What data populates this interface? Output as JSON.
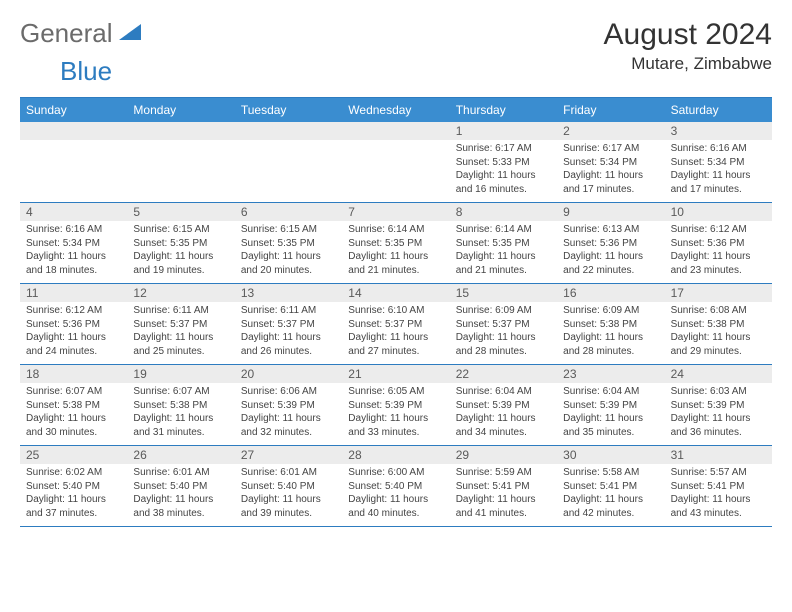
{
  "logo": {
    "general": "General",
    "blue": "Blue"
  },
  "title": "August 2024",
  "location": "Mutare, Zimbabwe",
  "colors": {
    "header_bg": "#3a8dd0",
    "header_text": "#ffffff",
    "rule": "#2d7cc0",
    "daynum_bg": "#ececec",
    "body_text": "#444444",
    "logo_gray": "#6b6b6b",
    "logo_blue": "#2d7cc0"
  },
  "weekdays": [
    "Sunday",
    "Monday",
    "Tuesday",
    "Wednesday",
    "Thursday",
    "Friday",
    "Saturday"
  ],
  "weeks": [
    [
      {
        "n": "",
        "sr": "",
        "ss": "",
        "dl": ""
      },
      {
        "n": "",
        "sr": "",
        "ss": "",
        "dl": ""
      },
      {
        "n": "",
        "sr": "",
        "ss": "",
        "dl": ""
      },
      {
        "n": "",
        "sr": "",
        "ss": "",
        "dl": ""
      },
      {
        "n": "1",
        "sr": "Sunrise: 6:17 AM",
        "ss": "Sunset: 5:33 PM",
        "dl": "Daylight: 11 hours and 16 minutes."
      },
      {
        "n": "2",
        "sr": "Sunrise: 6:17 AM",
        "ss": "Sunset: 5:34 PM",
        "dl": "Daylight: 11 hours and 17 minutes."
      },
      {
        "n": "3",
        "sr": "Sunrise: 6:16 AM",
        "ss": "Sunset: 5:34 PM",
        "dl": "Daylight: 11 hours and 17 minutes."
      }
    ],
    [
      {
        "n": "4",
        "sr": "Sunrise: 6:16 AM",
        "ss": "Sunset: 5:34 PM",
        "dl": "Daylight: 11 hours and 18 minutes."
      },
      {
        "n": "5",
        "sr": "Sunrise: 6:15 AM",
        "ss": "Sunset: 5:35 PM",
        "dl": "Daylight: 11 hours and 19 minutes."
      },
      {
        "n": "6",
        "sr": "Sunrise: 6:15 AM",
        "ss": "Sunset: 5:35 PM",
        "dl": "Daylight: 11 hours and 20 minutes."
      },
      {
        "n": "7",
        "sr": "Sunrise: 6:14 AM",
        "ss": "Sunset: 5:35 PM",
        "dl": "Daylight: 11 hours and 21 minutes."
      },
      {
        "n": "8",
        "sr": "Sunrise: 6:14 AM",
        "ss": "Sunset: 5:35 PM",
        "dl": "Daylight: 11 hours and 21 minutes."
      },
      {
        "n": "9",
        "sr": "Sunrise: 6:13 AM",
        "ss": "Sunset: 5:36 PM",
        "dl": "Daylight: 11 hours and 22 minutes."
      },
      {
        "n": "10",
        "sr": "Sunrise: 6:12 AM",
        "ss": "Sunset: 5:36 PM",
        "dl": "Daylight: 11 hours and 23 minutes."
      }
    ],
    [
      {
        "n": "11",
        "sr": "Sunrise: 6:12 AM",
        "ss": "Sunset: 5:36 PM",
        "dl": "Daylight: 11 hours and 24 minutes."
      },
      {
        "n": "12",
        "sr": "Sunrise: 6:11 AM",
        "ss": "Sunset: 5:37 PM",
        "dl": "Daylight: 11 hours and 25 minutes."
      },
      {
        "n": "13",
        "sr": "Sunrise: 6:11 AM",
        "ss": "Sunset: 5:37 PM",
        "dl": "Daylight: 11 hours and 26 minutes."
      },
      {
        "n": "14",
        "sr": "Sunrise: 6:10 AM",
        "ss": "Sunset: 5:37 PM",
        "dl": "Daylight: 11 hours and 27 minutes."
      },
      {
        "n": "15",
        "sr": "Sunrise: 6:09 AM",
        "ss": "Sunset: 5:37 PM",
        "dl": "Daylight: 11 hours and 28 minutes."
      },
      {
        "n": "16",
        "sr": "Sunrise: 6:09 AM",
        "ss": "Sunset: 5:38 PM",
        "dl": "Daylight: 11 hours and 28 minutes."
      },
      {
        "n": "17",
        "sr": "Sunrise: 6:08 AM",
        "ss": "Sunset: 5:38 PM",
        "dl": "Daylight: 11 hours and 29 minutes."
      }
    ],
    [
      {
        "n": "18",
        "sr": "Sunrise: 6:07 AM",
        "ss": "Sunset: 5:38 PM",
        "dl": "Daylight: 11 hours and 30 minutes."
      },
      {
        "n": "19",
        "sr": "Sunrise: 6:07 AM",
        "ss": "Sunset: 5:38 PM",
        "dl": "Daylight: 11 hours and 31 minutes."
      },
      {
        "n": "20",
        "sr": "Sunrise: 6:06 AM",
        "ss": "Sunset: 5:39 PM",
        "dl": "Daylight: 11 hours and 32 minutes."
      },
      {
        "n": "21",
        "sr": "Sunrise: 6:05 AM",
        "ss": "Sunset: 5:39 PM",
        "dl": "Daylight: 11 hours and 33 minutes."
      },
      {
        "n": "22",
        "sr": "Sunrise: 6:04 AM",
        "ss": "Sunset: 5:39 PM",
        "dl": "Daylight: 11 hours and 34 minutes."
      },
      {
        "n": "23",
        "sr": "Sunrise: 6:04 AM",
        "ss": "Sunset: 5:39 PM",
        "dl": "Daylight: 11 hours and 35 minutes."
      },
      {
        "n": "24",
        "sr": "Sunrise: 6:03 AM",
        "ss": "Sunset: 5:39 PM",
        "dl": "Daylight: 11 hours and 36 minutes."
      }
    ],
    [
      {
        "n": "25",
        "sr": "Sunrise: 6:02 AM",
        "ss": "Sunset: 5:40 PM",
        "dl": "Daylight: 11 hours and 37 minutes."
      },
      {
        "n": "26",
        "sr": "Sunrise: 6:01 AM",
        "ss": "Sunset: 5:40 PM",
        "dl": "Daylight: 11 hours and 38 minutes."
      },
      {
        "n": "27",
        "sr": "Sunrise: 6:01 AM",
        "ss": "Sunset: 5:40 PM",
        "dl": "Daylight: 11 hours and 39 minutes."
      },
      {
        "n": "28",
        "sr": "Sunrise: 6:00 AM",
        "ss": "Sunset: 5:40 PM",
        "dl": "Daylight: 11 hours and 40 minutes."
      },
      {
        "n": "29",
        "sr": "Sunrise: 5:59 AM",
        "ss": "Sunset: 5:41 PM",
        "dl": "Daylight: 11 hours and 41 minutes."
      },
      {
        "n": "30",
        "sr": "Sunrise: 5:58 AM",
        "ss": "Sunset: 5:41 PM",
        "dl": "Daylight: 11 hours and 42 minutes."
      },
      {
        "n": "31",
        "sr": "Sunrise: 5:57 AM",
        "ss": "Sunset: 5:41 PM",
        "dl": "Daylight: 11 hours and 43 minutes."
      }
    ]
  ]
}
